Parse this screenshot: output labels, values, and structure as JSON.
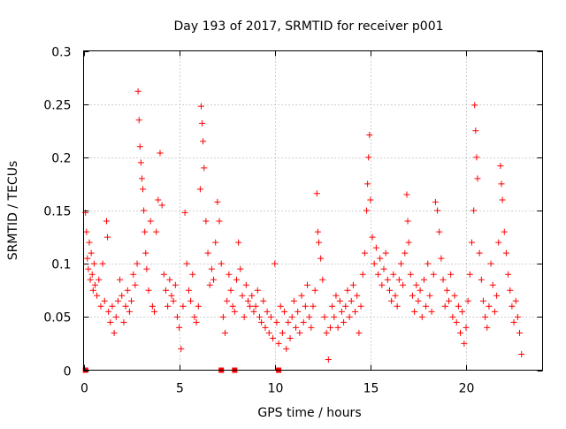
{
  "chart_data": {
    "type": "scatter",
    "title": "Day 193 of 2017, SRMTID for receiver p001",
    "xlabel": "GPS time / hours",
    "ylabel": "SRMTID / TECUs",
    "xlim": [
      0,
      24
    ],
    "ylim": [
      0,
      0.3
    ],
    "x_ticks": [
      0,
      5,
      10,
      15,
      20
    ],
    "x_tick_labels": [
      "0",
      "5",
      "10",
      "15",
      "20"
    ],
    "y_ticks": [
      0,
      0.05,
      0.1,
      0.15,
      0.2,
      0.25,
      0.3
    ],
    "y_tick_labels": [
      "0",
      "0.05",
      "0.1",
      "0.15",
      "0.2",
      "0.25",
      "0.3"
    ],
    "grid": true,
    "marker": "+",
    "series_color": "#ff0000",
    "series": [
      {
        "name": "SRMTID",
        "points": [
          [
            0.1,
            0.148
          ],
          [
            0.15,
            0.13
          ],
          [
            0.2,
            0.105
          ],
          [
            0.25,
            0.095
          ],
          [
            0.3,
            0.12
          ],
          [
            0.35,
            0.085
          ],
          [
            0.4,
            0.11
          ],
          [
            0.45,
            0.09
          ],
          [
            0.5,
            0.075
          ],
          [
            0.55,
            0.1
          ],
          [
            0.6,
            0.08
          ],
          [
            0.7,
            0.07
          ],
          [
            0.8,
            0.085
          ],
          [
            0.9,
            0.06
          ],
          [
            1.0,
            0.1
          ],
          [
            1.1,
            0.065
          ],
          [
            1.2,
            0.14
          ],
          [
            1.25,
            0.125
          ],
          [
            1.3,
            0.055
          ],
          [
            1.4,
            0.045
          ],
          [
            1.5,
            0.06
          ],
          [
            1.6,
            0.035
          ],
          [
            1.7,
            0.05
          ],
          [
            1.8,
            0.065
          ],
          [
            1.9,
            0.085
          ],
          [
            2.0,
            0.07
          ],
          [
            2.1,
            0.045
          ],
          [
            2.2,
            0.06
          ],
          [
            2.3,
            0.075
          ],
          [
            2.4,
            0.055
          ],
          [
            2.5,
            0.065
          ],
          [
            2.6,
            0.09
          ],
          [
            2.7,
            0.08
          ],
          [
            2.8,
            0.1
          ],
          [
            2.85,
            0.262
          ],
          [
            2.9,
            0.235
          ],
          [
            2.95,
            0.21
          ],
          [
            3.0,
            0.195
          ],
          [
            3.05,
            0.18
          ],
          [
            3.1,
            0.17
          ],
          [
            3.15,
            0.15
          ],
          [
            3.2,
            0.13
          ],
          [
            3.25,
            0.11
          ],
          [
            3.3,
            0.095
          ],
          [
            3.4,
            0.075
          ],
          [
            3.5,
            0.14
          ],
          [
            3.6,
            0.06
          ],
          [
            3.7,
            0.055
          ],
          [
            3.8,
            0.13
          ],
          [
            3.9,
            0.16
          ],
          [
            4.0,
            0.204
          ],
          [
            4.1,
            0.155
          ],
          [
            4.2,
            0.09
          ],
          [
            4.3,
            0.075
          ],
          [
            4.4,
            0.06
          ],
          [
            4.5,
            0.085
          ],
          [
            4.6,
            0.07
          ],
          [
            4.7,
            0.065
          ],
          [
            4.8,
            0.08
          ],
          [
            4.9,
            0.05
          ],
          [
            5.0,
            0.04
          ],
          [
            5.1,
            0.02
          ],
          [
            5.2,
            0.06
          ],
          [
            5.3,
            0.148
          ],
          [
            5.4,
            0.1
          ],
          [
            5.5,
            0.075
          ],
          [
            5.6,
            0.065
          ],
          [
            5.7,
            0.09
          ],
          [
            5.8,
            0.05
          ],
          [
            5.9,
            0.045
          ],
          [
            6.0,
            0.06
          ],
          [
            6.1,
            0.17
          ],
          [
            6.15,
            0.248
          ],
          [
            6.2,
            0.232
          ],
          [
            6.25,
            0.215
          ],
          [
            6.3,
            0.19
          ],
          [
            6.4,
            0.14
          ],
          [
            6.5,
            0.11
          ],
          [
            6.6,
            0.08
          ],
          [
            6.7,
            0.095
          ],
          [
            6.8,
            0.085
          ],
          [
            6.9,
            0.12
          ],
          [
            7.0,
            0.158
          ],
          [
            7.1,
            0.14
          ],
          [
            7.2,
            0.1
          ],
          [
            7.3,
            0.05
          ],
          [
            7.4,
            0.035
          ],
          [
            7.5,
            0.065
          ],
          [
            7.6,
            0.09
          ],
          [
            7.7,
            0.075
          ],
          [
            7.8,
            0.06
          ],
          [
            7.9,
            0.055
          ],
          [
            8.0,
            0.085
          ],
          [
            8.1,
            0.12
          ],
          [
            8.2,
            0.095
          ],
          [
            8.3,
            0.07
          ],
          [
            8.4,
            0.05
          ],
          [
            8.5,
            0.08
          ],
          [
            8.6,
            0.065
          ],
          [
            8.7,
            0.06
          ],
          [
            8.8,
            0.07
          ],
          [
            8.9,
            0.055
          ],
          [
            9.0,
            0.06
          ],
          [
            9.1,
            0.075
          ],
          [
            9.2,
            0.05
          ],
          [
            9.3,
            0.045
          ],
          [
            9.4,
            0.065
          ],
          [
            9.5,
            0.04
          ],
          [
            9.6,
            0.055
          ],
          [
            9.7,
            0.035
          ],
          [
            9.8,
            0.05
          ],
          [
            9.9,
            0.03
          ],
          [
            10.0,
            0.1
          ],
          [
            10.1,
            0.045
          ],
          [
            10.2,
            0.025
          ],
          [
            10.3,
            0.06
          ],
          [
            10.4,
            0.035
          ],
          [
            10.5,
            0.055
          ],
          [
            10.6,
            0.02
          ],
          [
            10.7,
            0.045
          ],
          [
            10.8,
            0.03
          ],
          [
            10.9,
            0.05
          ],
          [
            11.0,
            0.065
          ],
          [
            11.1,
            0.04
          ],
          [
            11.2,
            0.055
          ],
          [
            11.3,
            0.035
          ],
          [
            11.4,
            0.07
          ],
          [
            11.5,
            0.045
          ],
          [
            11.6,
            0.06
          ],
          [
            11.7,
            0.08
          ],
          [
            11.8,
            0.05
          ],
          [
            11.9,
            0.04
          ],
          [
            12.0,
            0.06
          ],
          [
            12.1,
            0.075
          ],
          [
            12.2,
            0.166
          ],
          [
            12.25,
            0.13
          ],
          [
            12.3,
            0.12
          ],
          [
            12.4,
            0.105
          ],
          [
            12.5,
            0.085
          ],
          [
            12.6,
            0.05
          ],
          [
            12.7,
            0.035
          ],
          [
            12.8,
            0.01
          ],
          [
            12.9,
            0.04
          ],
          [
            13.0,
            0.06
          ],
          [
            13.1,
            0.05
          ],
          [
            13.2,
            0.07
          ],
          [
            13.3,
            0.04
          ],
          [
            13.4,
            0.065
          ],
          [
            13.5,
            0.055
          ],
          [
            13.6,
            0.045
          ],
          [
            13.7,
            0.06
          ],
          [
            13.8,
            0.075
          ],
          [
            13.9,
            0.05
          ],
          [
            14.0,
            0.065
          ],
          [
            14.1,
            0.08
          ],
          [
            14.2,
            0.055
          ],
          [
            14.3,
            0.07
          ],
          [
            14.4,
            0.035
          ],
          [
            14.5,
            0.06
          ],
          [
            14.6,
            0.09
          ],
          [
            14.7,
            0.11
          ],
          [
            14.8,
            0.15
          ],
          [
            14.85,
            0.175
          ],
          [
            14.9,
            0.2
          ],
          [
            14.95,
            0.221
          ],
          [
            15.0,
            0.16
          ],
          [
            15.1,
            0.125
          ],
          [
            15.2,
            0.1
          ],
          [
            15.3,
            0.115
          ],
          [
            15.4,
            0.09
          ],
          [
            15.5,
            0.105
          ],
          [
            15.6,
            0.08
          ],
          [
            15.7,
            0.095
          ],
          [
            15.8,
            0.11
          ],
          [
            15.9,
            0.085
          ],
          [
            16.0,
            0.075
          ],
          [
            16.1,
            0.065
          ],
          [
            16.2,
            0.09
          ],
          [
            16.3,
            0.07
          ],
          [
            16.4,
            0.06
          ],
          [
            16.5,
            0.085
          ],
          [
            16.6,
            0.1
          ],
          [
            16.7,
            0.08
          ],
          [
            16.8,
            0.11
          ],
          [
            16.9,
            0.165
          ],
          [
            16.95,
            0.14
          ],
          [
            17.0,
            0.12
          ],
          [
            17.1,
            0.09
          ],
          [
            17.2,
            0.07
          ],
          [
            17.3,
            0.055
          ],
          [
            17.4,
            0.08
          ],
          [
            17.5,
            0.065
          ],
          [
            17.6,
            0.075
          ],
          [
            17.7,
            0.05
          ],
          [
            17.8,
            0.085
          ],
          [
            17.9,
            0.06
          ],
          [
            18.0,
            0.1
          ],
          [
            18.1,
            0.07
          ],
          [
            18.2,
            0.055
          ],
          [
            18.3,
            0.09
          ],
          [
            18.4,
            0.158
          ],
          [
            18.5,
            0.15
          ],
          [
            18.6,
            0.13
          ],
          [
            18.7,
            0.105
          ],
          [
            18.8,
            0.085
          ],
          [
            18.9,
            0.06
          ],
          [
            19.0,
            0.075
          ],
          [
            19.1,
            0.065
          ],
          [
            19.2,
            0.09
          ],
          [
            19.3,
            0.05
          ],
          [
            19.4,
            0.07
          ],
          [
            19.5,
            0.045
          ],
          [
            19.6,
            0.06
          ],
          [
            19.7,
            0.035
          ],
          [
            19.8,
            0.055
          ],
          [
            19.9,
            0.025
          ],
          [
            20.0,
            0.04
          ],
          [
            20.1,
            0.065
          ],
          [
            20.2,
            0.09
          ],
          [
            20.3,
            0.12
          ],
          [
            20.4,
            0.15
          ],
          [
            20.45,
            0.249
          ],
          [
            20.5,
            0.225
          ],
          [
            20.55,
            0.2
          ],
          [
            20.6,
            0.18
          ],
          [
            20.7,
            0.11
          ],
          [
            20.8,
            0.085
          ],
          [
            20.9,
            0.065
          ],
          [
            21.0,
            0.05
          ],
          [
            21.1,
            0.04
          ],
          [
            21.2,
            0.06
          ],
          [
            21.3,
            0.1
          ],
          [
            21.4,
            0.08
          ],
          [
            21.5,
            0.055
          ],
          [
            21.6,
            0.07
          ],
          [
            21.7,
            0.12
          ],
          [
            21.8,
            0.192
          ],
          [
            21.85,
            0.175
          ],
          [
            21.9,
            0.16
          ],
          [
            22.0,
            0.13
          ],
          [
            22.1,
            0.11
          ],
          [
            22.2,
            0.09
          ],
          [
            22.3,
            0.075
          ],
          [
            22.4,
            0.06
          ],
          [
            22.5,
            0.045
          ],
          [
            22.6,
            0.065
          ],
          [
            22.7,
            0.05
          ],
          [
            22.8,
            0.035
          ],
          [
            22.9,
            0.015
          ]
        ]
      }
    ],
    "zero_value_marks_x": [
      0.1,
      7.2,
      7.9,
      10.2
    ]
  }
}
